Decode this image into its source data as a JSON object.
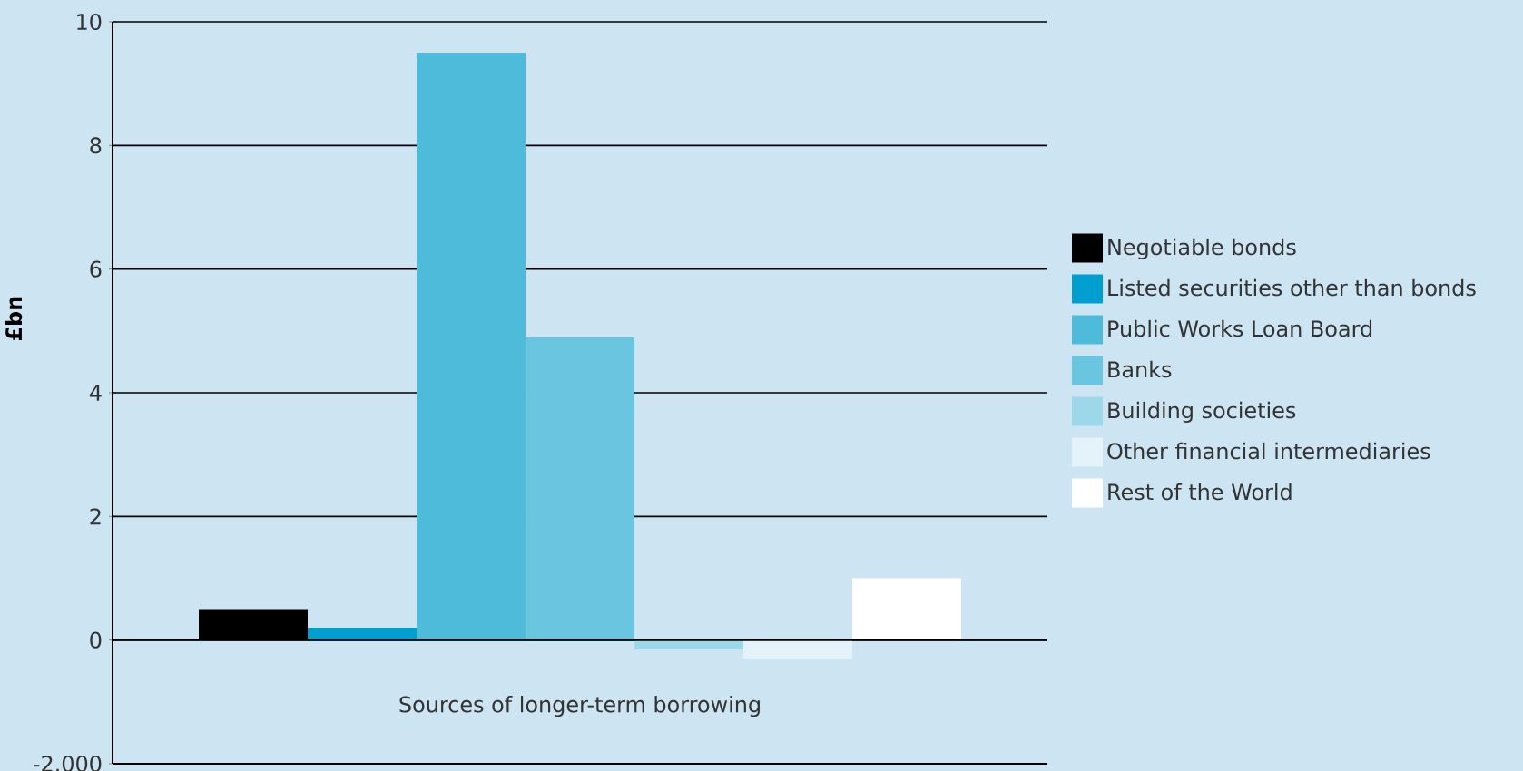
{
  "chart_data": {
    "type": "bar",
    "categories": [
      "Sources of longer-term borrowing"
    ],
    "ylabel": "£bn",
    "ylim": [
      -2,
      10
    ],
    "yticks": [
      {
        "value": -2,
        "label": "-2.000"
      },
      0,
      2,
      4,
      6,
      8,
      10
    ],
    "grid": "y",
    "legend": "right",
    "series": [
      {
        "name": "Negotiable bonds",
        "color": "#000000",
        "values": [
          0.5
        ]
      },
      {
        "name": "Listed securities other than bonds",
        "color": "#009fcf",
        "values": [
          0.2
        ]
      },
      {
        "name": "Public Works Loan Board",
        "color": "#4fbbdb",
        "values": [
          9.5
        ]
      },
      {
        "name": "Banks",
        "color": "#69c5e0",
        "values": [
          4.9
        ]
      },
      {
        "name": "Building societies",
        "color": "#9dd8ea",
        "values": [
          -0.15
        ]
      },
      {
        "name": "Other financial intermediaries",
        "color": "#e3f3f9",
        "values": [
          -0.3
        ]
      },
      {
        "name": "Rest of the World",
        "color": "#ffffff",
        "values": [
          1.0
        ]
      }
    ]
  }
}
